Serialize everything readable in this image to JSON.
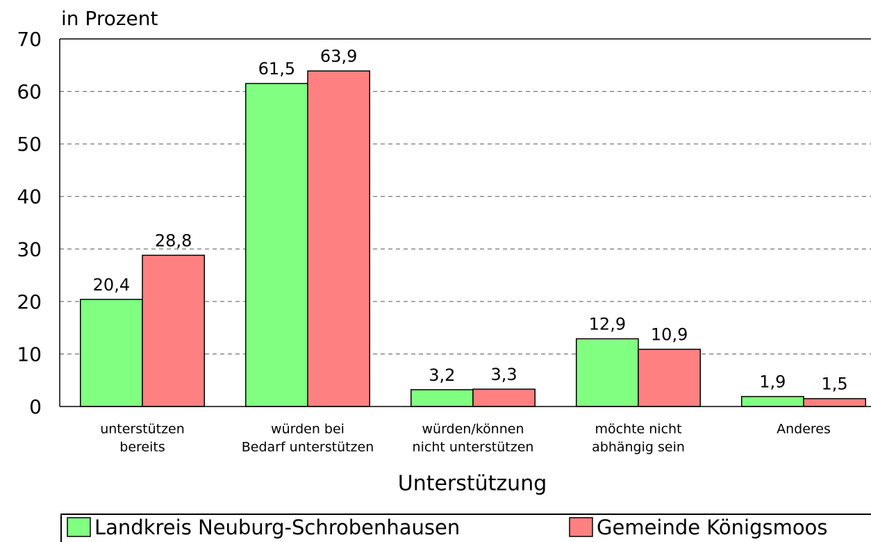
{
  "chart_data": {
    "type": "bar",
    "y_label": "in Prozent",
    "x_label": "Unterstützung",
    "categories": [
      [
        "unterstützen",
        "bereits"
      ],
      [
        "würden bei",
        "Bedarf unterstützen"
      ],
      [
        "würden/können",
        "nicht unterstützen"
      ],
      [
        "möchte nicht",
        "abhängig sein"
      ],
      [
        "Anderes"
      ]
    ],
    "series": [
      {
        "name": "Landkreis Neuburg-Schrobenhausen",
        "color": "#80ff80",
        "values": [
          20.4,
          61.5,
          3.2,
          12.9,
          1.9
        ],
        "value_labels": [
          "20,4",
          "61,5",
          "3,2",
          "12,9",
          "1,9"
        ]
      },
      {
        "name": "Gemeinde Königsmoos",
        "color": "#ff8080",
        "values": [
          28.8,
          63.9,
          3.3,
          10.9,
          1.5
        ],
        "value_labels": [
          "28,8",
          "63,9",
          "3,3",
          "10,9",
          "1,5"
        ]
      }
    ],
    "ylim": [
      0,
      70
    ],
    "yticks": [
      0,
      10,
      20,
      30,
      40,
      50,
      60,
      70
    ],
    "grid": true,
    "legend": "bottom"
  }
}
